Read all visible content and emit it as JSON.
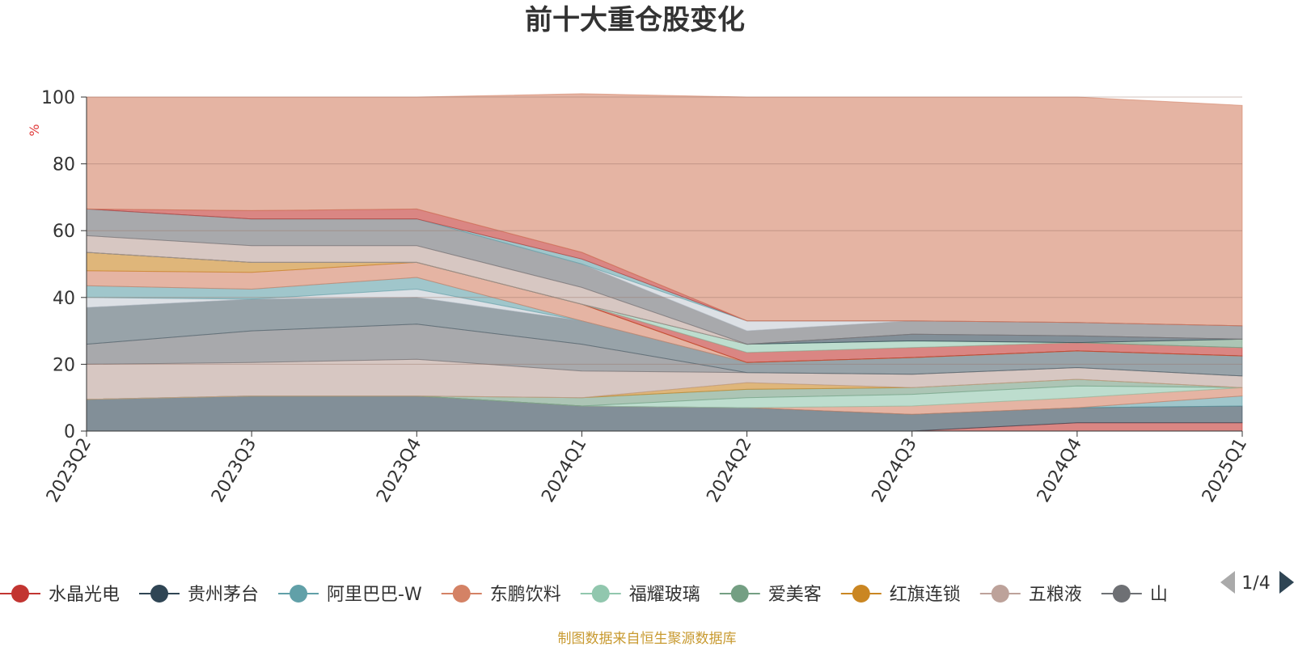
{
  "chart_data": {
    "type": "area",
    "stacked": true,
    "title": "前十大重仓股变化",
    "unit": "%",
    "categories": [
      "2023Q2",
      "2023Q3",
      "2023Q4",
      "2024Q1",
      "2024Q2",
      "2024Q3",
      "2024Q4",
      "2025Q1"
    ],
    "ylim": [
      0,
      100
    ],
    "yticks": [
      0,
      20,
      40,
      60,
      80,
      100
    ],
    "grid": true,
    "legend": {
      "position": "bottom",
      "page": "1/4",
      "items": [
        {
          "label": "水晶光电",
          "color": "#c23531"
        },
        {
          "label": "贵州茅台",
          "color": "#2f4554"
        },
        {
          "label": "阿里巴巴-W",
          "color": "#61a0a8"
        },
        {
          "label": "东鹏饮料",
          "color": "#d48265"
        },
        {
          "label": "福耀玻璃",
          "color": "#91c7ae"
        },
        {
          "label": "爱美客",
          "color": "#749f83"
        },
        {
          "label": "红旗连锁",
          "color": "#ca8622"
        },
        {
          "label": "五粮液",
          "color": "#bda29a"
        },
        {
          "label": "山",
          "color": "#6e7074"
        }
      ]
    },
    "series": [
      {
        "color": "#c23531",
        "values": [
          0,
          0,
          0,
          0,
          0,
          0,
          2.5,
          2.5
        ]
      },
      {
        "color": "#2f4554",
        "values": [
          9.5,
          10.5,
          10.5,
          7.5,
          7,
          5,
          4.5,
          5
        ]
      },
      {
        "color": "#61a0a8",
        "values": [
          0,
          0,
          0,
          0,
          0,
          0,
          0,
          3
        ]
      },
      {
        "color": "#d48265",
        "values": [
          0,
          0,
          0,
          0,
          0,
          2.5,
          3,
          2.5
        ]
      },
      {
        "color": "#91c7ae",
        "values": [
          0,
          0,
          0,
          0,
          3,
          3.5,
          3.5,
          0
        ]
      },
      {
        "color": "#749f83",
        "values": [
          0,
          0,
          0,
          2.5,
          2.5,
          2,
          2,
          0
        ]
      },
      {
        "color": "#ca8622",
        "values": [
          0,
          0,
          0,
          0,
          2,
          0,
          0,
          0
        ]
      },
      {
        "color": "#bda29a",
        "values": [
          10.5,
          10,
          11,
          8,
          3,
          4,
          3.5,
          3.5
        ]
      },
      {
        "color": "#6e7074",
        "values": [
          6,
          9.5,
          10.5,
          8,
          0,
          0,
          0,
          0
        ]
      },
      {
        "color": "#546570",
        "values": [
          11,
          9.5,
          8,
          7,
          3,
          5,
          5,
          6
        ]
      },
      {
        "color": "#c4ccd3",
        "values": [
          3,
          0,
          2.5,
          0,
          0,
          0,
          0,
          0
        ]
      },
      {
        "color": "#61a0a8",
        "values": [
          3.5,
          3,
          3.5,
          0,
          0,
          0,
          0,
          0
        ]
      },
      {
        "color": "#d48265",
        "values": [
          4.5,
          5,
          4.5,
          5,
          0,
          0,
          0,
          0
        ]
      },
      {
        "color": "#ca8622",
        "values": [
          5.5,
          3,
          0,
          0,
          0,
          0,
          0,
          0
        ]
      },
      {
        "color": "#c23531",
        "values": [
          0,
          0,
          0,
          0,
          3,
          3,
          2.5,
          2.5
        ]
      },
      {
        "color": "#91c7ae",
        "values": [
          0,
          0,
          0,
          0,
          2.5,
          2,
          0,
          0
        ]
      },
      {
        "color": "#749f83",
        "values": [
          0,
          0,
          0,
          0,
          0,
          0,
          0,
          2.5
        ]
      },
      {
        "color": "#2f4554",
        "values": [
          0,
          0,
          0,
          0,
          0,
          2,
          2,
          0
        ]
      },
      {
        "color": "#bda29a",
        "values": [
          5,
          5,
          5,
          5,
          0,
          0,
          0,
          0
        ]
      },
      {
        "color": "#6e7074",
        "values": [
          8,
          8,
          8,
          7,
          4,
          4,
          4,
          4
        ]
      },
      {
        "color": "#c4ccd3",
        "values": [
          0,
          0,
          0,
          0,
          3,
          0,
          0,
          0
        ]
      },
      {
        "color": "#61a0a8",
        "values": [
          0,
          0,
          0,
          1.5,
          0,
          0,
          0,
          0
        ]
      },
      {
        "color": "#c23531",
        "values": [
          0,
          2.5,
          3,
          2,
          0,
          0,
          0,
          0
        ]
      },
      {
        "color": "#d48265",
        "values": [
          33.5,
          34,
          33.5,
          47.5,
          67,
          67,
          67.5,
          66
        ]
      }
    ]
  },
  "source_note": "制图数据来自恒生聚源数据库"
}
